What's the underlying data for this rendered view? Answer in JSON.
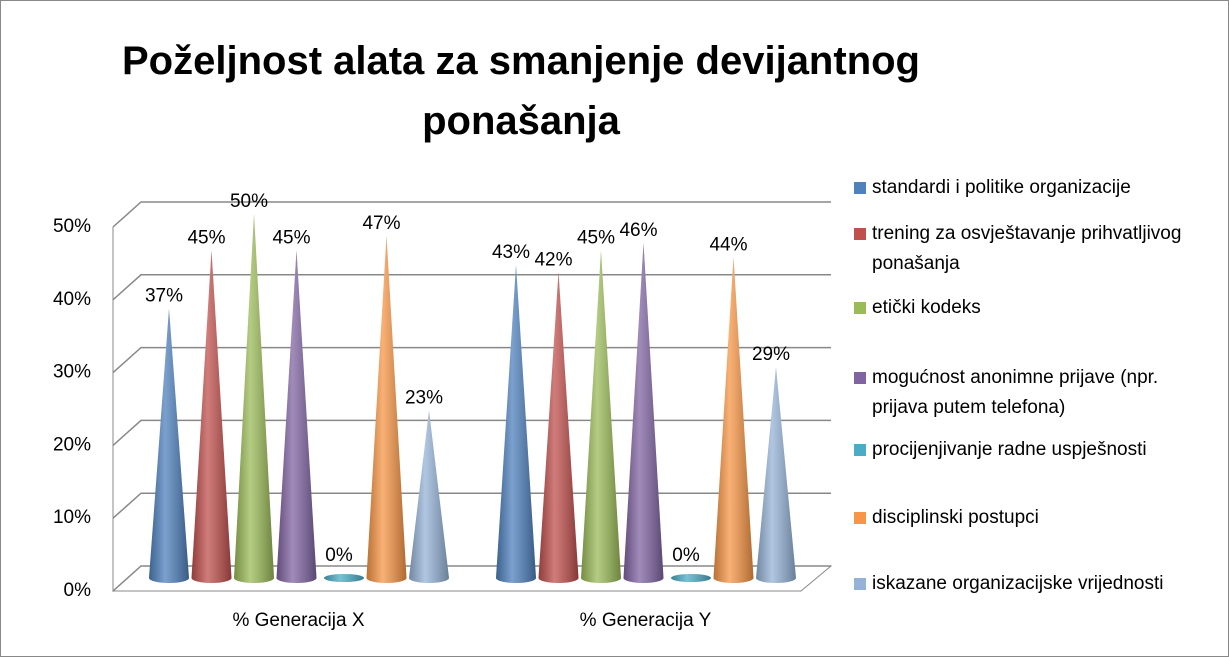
{
  "chart_data": {
    "type": "bar",
    "title": "Poželjnost alata za smanjenje devijantnog ponašanja",
    "categories": [
      "% Generacija X",
      "% Generacija Y"
    ],
    "series": [
      {
        "name": "standardi i politike organizacije",
        "color": "#4f81bd",
        "values": [
          37,
          43
        ],
        "value_labels": [
          "37%",
          "43%"
        ]
      },
      {
        "name": "trening za osvještavanje prihvatljivog ponašanja",
        "color": "#c0504d",
        "values": [
          45,
          42
        ],
        "value_labels": [
          "45%",
          "42%"
        ]
      },
      {
        "name": "etički kodeks",
        "color": "#9bbb59",
        "values": [
          50,
          45
        ],
        "value_labels": [
          "50%",
          "45%"
        ]
      },
      {
        "name": "mogućnost anonimne prijave (npr. prijava putem telefona)",
        "color": "#8064a2",
        "values": [
          45,
          46
        ],
        "value_labels": [
          "45%",
          "46%"
        ]
      },
      {
        "name": "procijenjivanje radne uspješnosti",
        "color": "#4bacc6",
        "values": [
          0,
          0
        ],
        "value_labels": [
          "0%",
          "0%"
        ]
      },
      {
        "name": "disciplinski postupci",
        "color": "#f79646",
        "values": [
          47,
          44
        ],
        "value_labels": [
          "47%",
          "44%"
        ]
      },
      {
        "name": "iskazane organizacijske vrijednosti",
        "color": "#95b3d7",
        "values": [
          23,
          29
        ],
        "value_labels": [
          "23%",
          "29%"
        ]
      }
    ],
    "ylim": [
      0,
      50
    ],
    "yticks": [
      {
        "value": 0,
        "label": "0%"
      },
      {
        "value": 10,
        "label": "10%"
      },
      {
        "value": 20,
        "label": "20%"
      },
      {
        "value": 30,
        "label": "30%"
      },
      {
        "value": 40,
        "label": "40%"
      },
      {
        "value": 50,
        "label": "50%"
      }
    ],
    "grid": true,
    "legend": "right"
  }
}
